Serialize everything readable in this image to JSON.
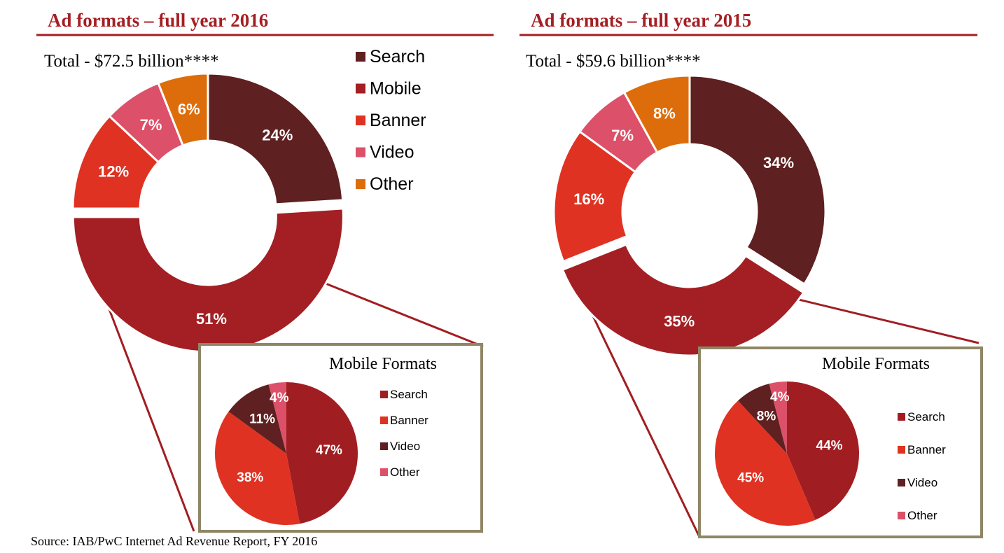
{
  "colors": {
    "title": "#a41f23",
    "rule": "#a41f23",
    "inset_border": "#8f8666",
    "connector": "#a01e22",
    "search": "#5e2020",
    "mobile": "#a31f23",
    "banner": "#df3222",
    "video": "#dc5169",
    "other": "#dd6d0a",
    "inset_search": "#a01e22",
    "inset_banner": "#df3222",
    "inset_video": "#5e2020",
    "inset_other": "#dc5169"
  },
  "source": "Source: IAB/PwC Internet Ad Revenue Report, FY 2016",
  "chart_data": [
    {
      "type": "pie",
      "variant": "donut",
      "title": "Ad formats – full year 2016",
      "subtitle": "Total - $72.5 billion****",
      "categories": [
        "Search",
        "Mobile",
        "Banner",
        "Video",
        "Other"
      ],
      "values": [
        24,
        51,
        12,
        7,
        6
      ],
      "labels": [
        "24%",
        "51%",
        "12%",
        "7%",
        "6%"
      ],
      "exploded": "Mobile",
      "legend_position": "right",
      "inset": {
        "type": "pie",
        "title": "Mobile Formats",
        "categories": [
          "Search",
          "Banner",
          "Video",
          "Other"
        ],
        "values": [
          47,
          38,
          11,
          4
        ],
        "labels": [
          "47%",
          "38%",
          "11%",
          "4%"
        ],
        "legend_position": "right"
      }
    },
    {
      "type": "pie",
      "variant": "donut",
      "title": "Ad formats – full year 2015",
      "subtitle": "Total - $59.6 billion****",
      "categories": [
        "Search",
        "Mobile",
        "Banner",
        "Video",
        "Other"
      ],
      "values": [
        34,
        35,
        16,
        7,
        8
      ],
      "labels": [
        "34%",
        "35%",
        "16%",
        "7%",
        "8%"
      ],
      "exploded": "Mobile",
      "legend_position": "none",
      "inset": {
        "type": "pie",
        "title": "Mobile Formats",
        "categories": [
          "Search",
          "Banner",
          "Video",
          "Other"
        ],
        "values": [
          44,
          45,
          8,
          4
        ],
        "labels": [
          "44%",
          "45%",
          "8%",
          "4%"
        ],
        "legend_position": "right"
      }
    }
  ]
}
